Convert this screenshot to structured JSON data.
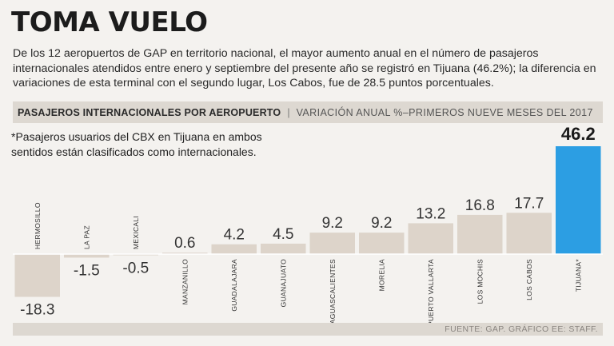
{
  "header": {
    "title": "TOMA VUELO",
    "intro": "De los 12 aeropuertos de GAP en territorio nacional, el mayor aumento anual en el número de pasajeros internacionales atendidos entre enero y septiembre del presente año se registró en Tijuana (46.2%); la diferencia en variaciones de esta terminal con el segundo lugar, Los Cabos, fue de 28.5 puntos porcentuales."
  },
  "subhead": {
    "main": "PASAJEROS INTERNACIONALES POR AEROPUERTO",
    "separator": "|",
    "secondary": "VARIACIÓN ANUAL %–PRIMEROS NUEVE MESES DEL 2017"
  },
  "note": "*Pasajeros usuarios del CBX en Tijuana en ambos sentidos están clasificados como internacionales.",
  "source": "FUENTE: GAP. GRÁFICO EE: STAFF.",
  "colors": {
    "bar": "#ddd4ca",
    "highlight": "#2c9ee3",
    "axis": "#ffffff"
  },
  "chart_data": {
    "type": "bar",
    "title": "PASAJEROS INTERNACIONALES POR AEROPUERTO",
    "subtitle": "VARIACIÓN ANUAL %–PRIMEROS NUEVE MESES DEL 2017",
    "xlabel": "",
    "ylabel": "Variación anual %",
    "categories": [
      "HERMOSILLO",
      "LA PAZ",
      "MEXICALI",
      "MANZANILLO",
      "GUADALAJARA",
      "GUANAJUATO",
      "AGUASCALIENTES",
      "MORELIA",
      "PUERTO VALLARTA",
      "LOS MOCHIS",
      "LOS CABOS",
      "TIJUANA*"
    ],
    "values": [
      -18.3,
      -1.5,
      -0.5,
      0.6,
      4.2,
      4.5,
      9.2,
      9.2,
      13.2,
      16.8,
      17.7,
      46.2
    ],
    "value_labels": [
      "-18.3",
      "-1.5",
      "-0.5",
      "0.6",
      "4.2",
      "4.5",
      "9.2",
      "9.2",
      "13.2",
      "16.8",
      "17.7",
      "46.2"
    ],
    "highlight_index": 11,
    "ylim": [
      -18.3,
      46.2
    ],
    "grid": false
  }
}
